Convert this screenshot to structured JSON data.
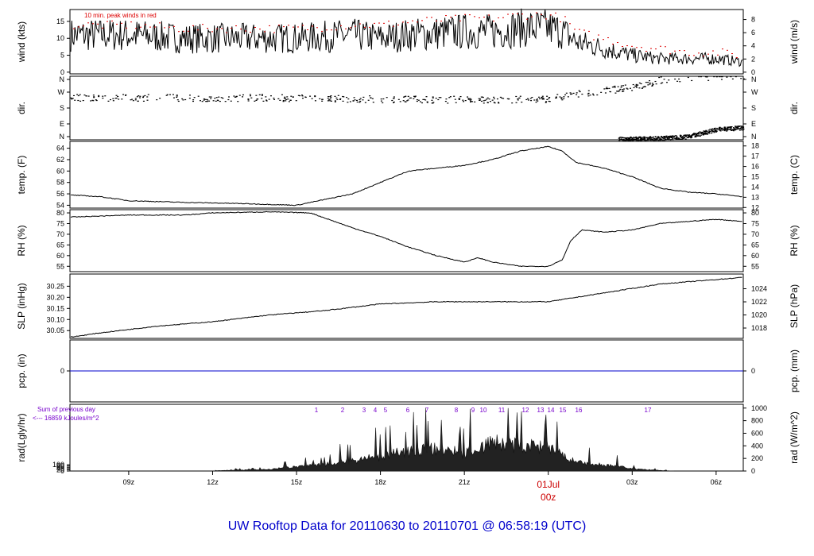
{
  "title": "UW Rooftop Data for 20110630  to  20110701 @ 06:58:19  (UTC)",
  "colors": {
    "frame": "#000000",
    "series": "#000000",
    "gust": "#dd0000",
    "pcp_line": "#0000cc",
    "sun": "#7700cc",
    "date_label": "#cc0000",
    "title": "#0000cc"
  },
  "chart_data": {
    "type": "line",
    "x_axis": {
      "ticks": [
        "09z",
        "12z",
        "15z",
        "18z",
        "21z",
        "00z",
        "03z",
        "06z"
      ],
      "date_label": "01Jul",
      "date_hour": "00z",
      "range_hours": [
        -17.1,
        6.97
      ]
    },
    "panels": [
      {
        "id": "wind",
        "left_label": "wind (kts)",
        "right_label": "wind (m/s)",
        "left_ticks": [
          0,
          5,
          10,
          15
        ],
        "right_ticks": [
          0,
          2,
          4,
          6,
          8
        ],
        "ylim": [
          -0.5,
          18.5
        ],
        "annotation": "10 min. peak winds in red",
        "series": [
          {
            "role": "wind",
            "x": [
              -17.1,
              -15,
              -13,
              -11,
              -9,
              -7,
              -6,
              -5,
              -3,
              -2,
              -1,
              0,
              0.5,
              1,
              2,
              3,
              4,
              5,
              6,
              6.97
            ],
            "y": [
              11,
              11,
              10,
              10,
              10,
              11,
              10,
              11,
              12,
              12,
              13,
              13,
              12,
              9,
              7,
              5,
              4,
              4,
              4,
              3
            ]
          },
          {
            "role": "gust",
            "x": [
              -17.1,
              -15,
              -13,
              -11,
              -9,
              -7,
              -6,
              -5,
              -3,
              -2,
              -1,
              0,
              0.5,
              1,
              2,
              3,
              4,
              5,
              6,
              6.97
            ],
            "y": [
              14,
              14,
              13,
              13,
              13,
              14,
              14,
              15,
              16,
              16,
              17,
              17,
              16,
              12,
              10,
              8,
              7,
              6,
              6,
              5
            ]
          }
        ]
      },
      {
        "id": "dir",
        "left_label": "dir.",
        "right_label": "dir.",
        "left_ticks": [
          "N",
          "E",
          "S",
          "W",
          "N"
        ],
        "right_ticks": [
          "N",
          "E",
          "S",
          "W",
          "N"
        ],
        "ylim": [
          0,
          360
        ],
        "series": [
          {
            "role": "direction",
            "x": [
              -17.1,
              -10,
              -5,
              0,
              0.5,
              2,
              3,
              4,
              6,
              6.97
            ],
            "y": [
              240,
              240,
              230,
              230,
              250,
              280,
              300,
              340,
              360,
              360
            ]
          },
          {
            "role": "direction_wrapped",
            "x": [
              2.5,
              4,
              5,
              6,
              6.97
            ],
            "y": [
              5,
              10,
              20,
              60,
              70
            ]
          }
        ]
      },
      {
        "id": "temp",
        "left_label": "temp. (F)",
        "right_label": "temp. (C)",
        "left_ticks": [
          54,
          56,
          58,
          60,
          62,
          64
        ],
        "right_ticks": [
          12,
          13,
          14,
          15,
          16,
          17,
          18
        ],
        "ylim": [
          53.5,
          65.2
        ],
        "series": [
          {
            "role": "temperature",
            "x": [
              -17.1,
              -16,
              -15,
              -13,
              -11,
              -9,
              -8,
              -7,
              -6,
              -5,
              -4,
              -3,
              -2,
              -1,
              0,
              0.5,
              1,
              2,
              3,
              4,
              5,
              6,
              6.97
            ],
            "y": [
              55.8,
              55.5,
              54.8,
              54.5,
              54.3,
              54.0,
              55,
              56,
              58,
              60,
              60.5,
              61,
              62,
              63.5,
              64.3,
              63.5,
              61.5,
              60.5,
              59,
              57,
              56.3,
              56,
              55.5
            ]
          }
        ]
      },
      {
        "id": "rh",
        "left_label": "RH (%)",
        "right_label": "RH (%)",
        "left_ticks": [
          55,
          60,
          65,
          70,
          75,
          80
        ],
        "right_ticks": [
          55,
          60,
          65,
          70,
          75,
          80
        ],
        "ylim": [
          52.5,
          81.5
        ],
        "series": [
          {
            "role": "humidity",
            "x": [
              -17.1,
              -15,
              -13,
              -12,
              -10,
              -8.5,
              -7,
              -6,
              -5,
              -4,
              -3,
              -2.5,
              -2,
              -1,
              0,
              0.5,
              0.8,
              1.2,
              2,
              3,
              4,
              5,
              6,
              6.97
            ],
            "y": [
              78,
              79,
              79,
              80,
              80.5,
              80,
              73,
              69,
              64,
              60,
              57,
              59,
              57,
              55,
              55,
              58,
              67,
              72,
              71,
              72,
              75,
              76,
              77,
              76
            ]
          }
        ]
      },
      {
        "id": "slp",
        "left_label": "SLP (inHg)",
        "right_label": "SLP (hPa)",
        "left_ticks": [
          30.05,
          30.1,
          30.15,
          30.2,
          30.25
        ],
        "right_ticks": [
          1018,
          1020,
          1022,
          1024
        ],
        "ylim": [
          30.015,
          30.305
        ],
        "series": [
          {
            "role": "pressure",
            "x": [
              -17.1,
              -16,
              -14,
              -12,
              -10,
              -8,
              -6,
              -4,
              -2,
              0,
              1,
              2,
              3,
              4,
              5,
              6,
              6.97
            ],
            "y": [
              30.02,
              30.04,
              30.07,
              30.09,
              30.12,
              30.14,
              30.17,
              30.18,
              30.18,
              30.18,
              30.2,
              30.22,
              30.24,
              30.26,
              30.27,
              30.28,
              30.29
            ]
          }
        ]
      },
      {
        "id": "pcp",
        "left_label": "pcp. (in)",
        "right_label": "pcp. (mm)",
        "left_ticks": [
          0
        ],
        "right_ticks": [
          0
        ],
        "ylim": [
          -1,
          1
        ],
        "series": [
          {
            "role": "precipitation",
            "x": [
              -17.1,
              6.97
            ],
            "y": [
              0,
              0
            ]
          }
        ]
      },
      {
        "id": "rad",
        "left_label": "rad(Lgly/hr)",
        "right_label": "rad (W/m^2)",
        "left_ticks": [
          0,
          20,
          40,
          60,
          80,
          100
        ],
        "right_ticks": [
          0,
          200,
          400,
          600,
          800,
          1000
        ],
        "ylim": [
          0,
          1060
        ],
        "sum_note_1": "Sum of previous day",
        "sum_note_2": "<--- 16859 kJoules/m^2",
        "sun_labels": [
          "1",
          "2",
          "3",
          "4",
          "5",
          "6",
          "7",
          "8",
          "9",
          "10",
          "11",
          "12",
          "13",
          "14",
          "15",
          "16",
          "17"
        ],
        "series": [
          {
            "role": "radiation",
            "x": [
              -11.9,
              -10,
              -8,
              -6,
              -5,
              -4,
              -3,
              -2,
              -1,
              0,
              1,
              2,
              2.5,
              3,
              4,
              4.5
            ],
            "y": [
              5,
              30,
              120,
              250,
              350,
              400,
              300,
              500,
              450,
              400,
              150,
              100,
              90,
              40,
              10,
              0
            ]
          }
        ]
      }
    ]
  }
}
